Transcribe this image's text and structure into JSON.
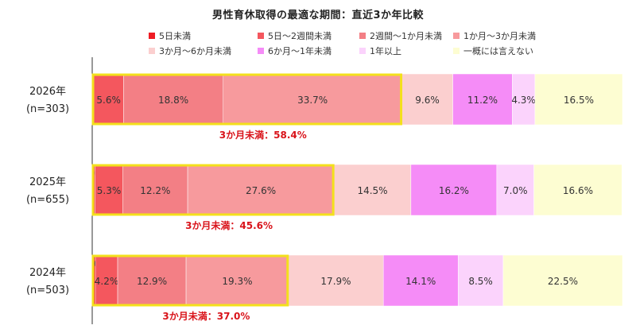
{
  "chart_data": {
    "type": "bar",
    "orientation": "horizontal",
    "stacked": "100%",
    "title": "男性育休取得の最適な期間：直近3か年比較",
    "categories": [
      {
        "year": "2026年",
        "n": "(n=303)"
      },
      {
        "year": "2025年",
        "n": "(n=655)"
      },
      {
        "year": "2024年",
        "n": "(n=503)"
      }
    ],
    "series": [
      {
        "name": "5日未満",
        "color": "#ee1c24",
        "values": [
          0.3,
          0.5,
          0.6
        ]
      },
      {
        "name": "5日～2週間未満",
        "color": "#f4575e",
        "values": [
          5.6,
          5.3,
          4.2
        ]
      },
      {
        "name": "2週間～1か月未満",
        "color": "#f37f85",
        "values": [
          18.8,
          12.2,
          12.9
        ]
      },
      {
        "name": "1か月～3か月未満",
        "color": "#f79a9d",
        "values": [
          33.7,
          27.6,
          19.3
        ]
      },
      {
        "name": "3か月～6か月未満",
        "color": "#fbcfcf",
        "values": [
          9.6,
          14.5,
          17.9
        ]
      },
      {
        "name": "6か月～1年未満",
        "color": "#f58cf7",
        "values": [
          11.2,
          16.2,
          14.1
        ]
      },
      {
        "name": "1年以上",
        "color": "#fbd3fc",
        "values": [
          4.3,
          7.0,
          8.5
        ]
      },
      {
        "name": "一概には言えない",
        "color": "#fdfdd2",
        "values": [
          16.5,
          16.6,
          22.5
        ]
      }
    ],
    "annotations": [
      "3か月未満：58.4%",
      "3か月未満：45.6%",
      "3か月未満：37.0%"
    ],
    "highlight_color": "#f3e01c",
    "annotation_color": "#d9141b",
    "legend_position": "top-right"
  }
}
